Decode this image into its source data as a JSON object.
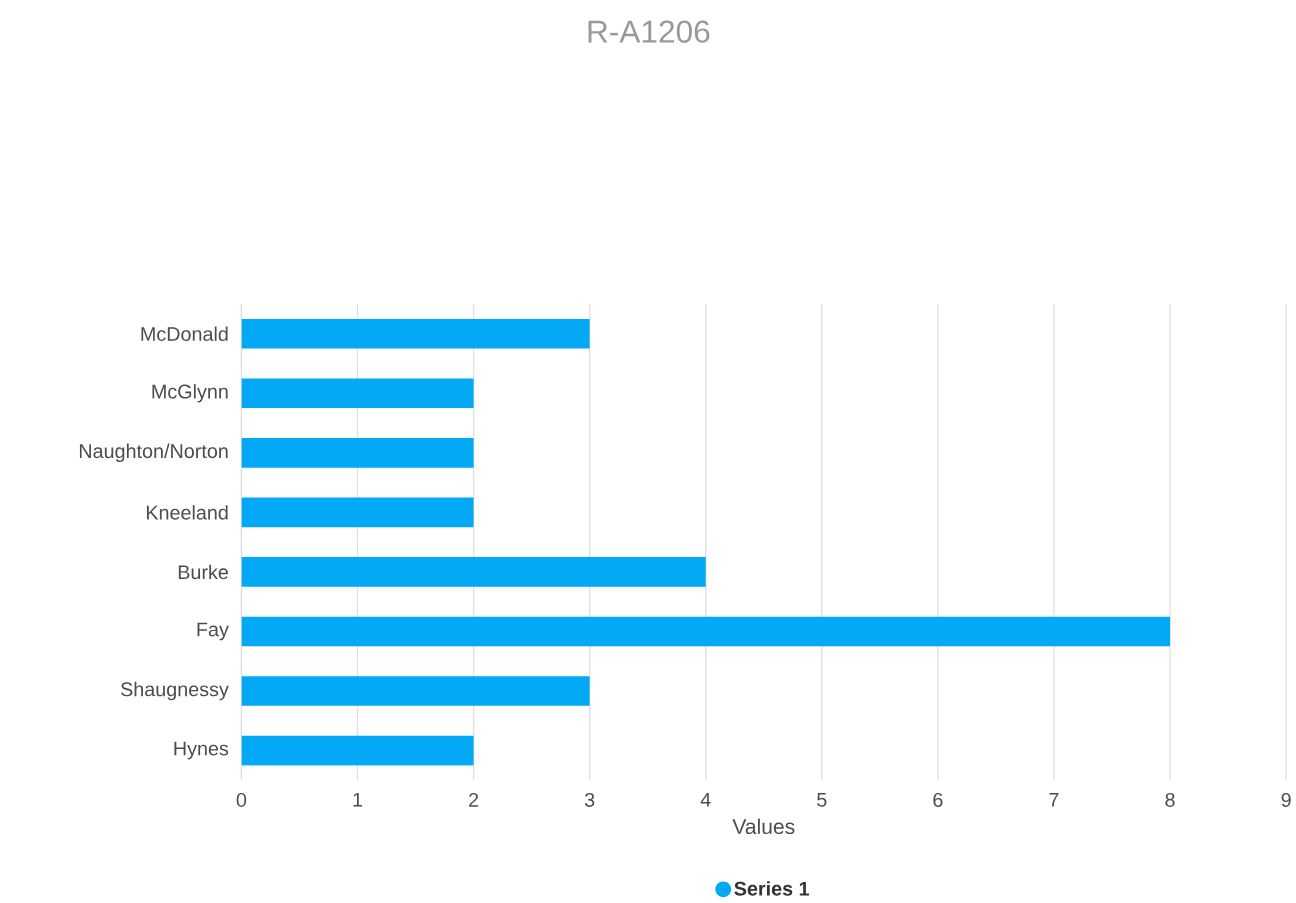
{
  "chart_data": {
    "type": "bar",
    "orientation": "horizontal",
    "title": "R-A1206",
    "xlabel": "Values",
    "categories": [
      "McDonald",
      "McGlynn",
      "Naughton/Norton",
      "Kneeland",
      "Burke",
      "Fay",
      "Shaugnessy",
      "Hynes"
    ],
    "series": [
      {
        "name": "Series 1",
        "color": "#03a9f4",
        "values": [
          3,
          2,
          2,
          2,
          4,
          8,
          3,
          2
        ]
      }
    ],
    "xlim": [
      0,
      9
    ],
    "xticks": [
      0,
      1,
      2,
      3,
      4,
      5,
      6,
      7,
      8,
      9
    ],
    "grid": "x",
    "legend": "bottom"
  }
}
